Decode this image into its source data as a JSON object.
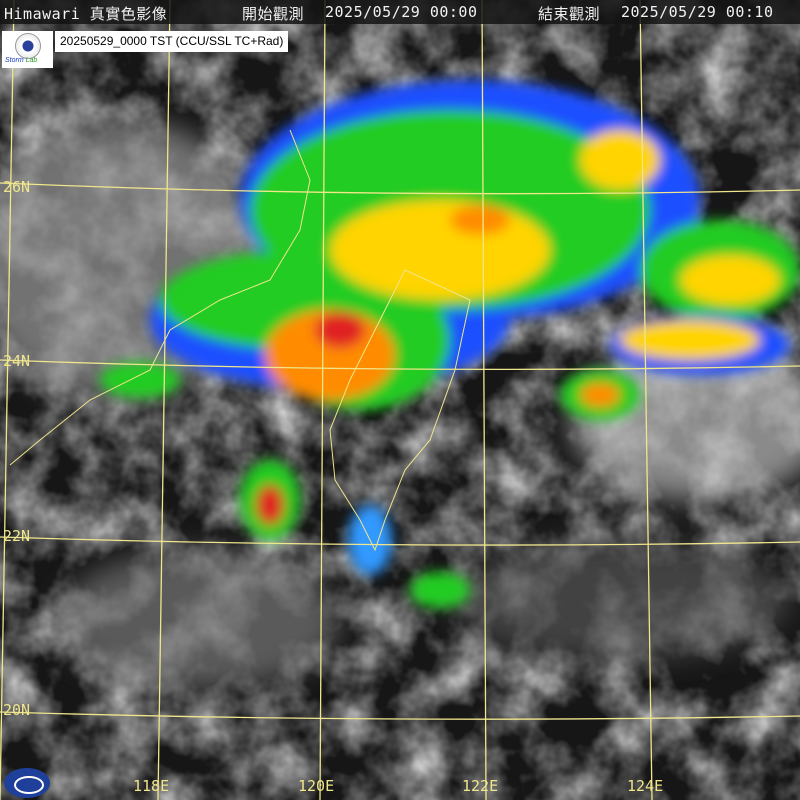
{
  "header": {
    "title": "Himawari 真實色影像",
    "start_label": "開始觀測",
    "start_time": "2025/05/29 00:00",
    "end_label": "結束觀測",
    "end_time": "2025/05/29 00:10"
  },
  "product_label": "20250529_0000 TST (CCU/SSL TC+Rad)",
  "logo_text": "Storm Lab",
  "latitude_labels": [
    "26N",
    "24N",
    "22N",
    "20N"
  ],
  "longitude_labels": [
    "118E",
    "120E",
    "122E",
    "124E"
  ],
  "colors": {
    "grid": "#f0e68c",
    "radar_blue": "#1f4fff",
    "radar_green": "#22cc22",
    "radar_yellow": "#ffd400",
    "radar_red": "#e02020"
  }
}
